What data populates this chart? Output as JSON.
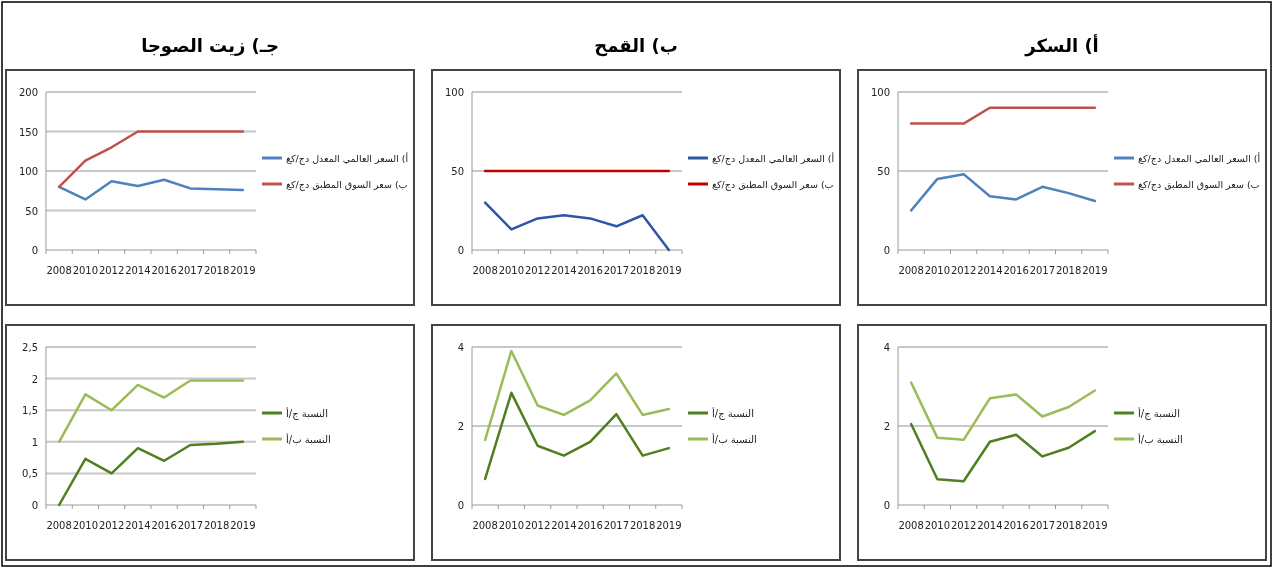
{
  "chart_data": [
    {
      "type": "line",
      "title": "أ)   السكر",
      "categories": [
        "2008",
        "2010",
        "2012",
        "2014",
        "2016",
        "2017",
        "2018",
        "2019"
      ],
      "ylim": [
        0,
        100
      ],
      "yticks": [
        0,
        50,
        100
      ],
      "grid": "y",
      "legend": "right",
      "series": [
        {
          "name": "أ) السعر العالمي المعدل دج/كغ",
          "color": "#4f81bd",
          "values": [
            25,
            45,
            48,
            34,
            32,
            40,
            36,
            31
          ]
        },
        {
          "name": "ب) سعر السوق المطبق دج/كغ",
          "color": "#c0504d",
          "values": [
            80,
            80,
            80,
            90,
            90,
            90,
            90,
            90
          ]
        }
      ]
    },
    {
      "type": "line",
      "title": "ب)  القمح",
      "categories": [
        "2008",
        "2010",
        "2012",
        "2014",
        "2016",
        "2017",
        "2018",
        "2019"
      ],
      "ylim": [
        0,
        100
      ],
      "yticks": [
        0,
        50,
        100
      ],
      "grid": "y",
      "legend": "right",
      "series": [
        {
          "name": "أ) السعر العالمي المعدل دج/كغ",
          "color": "#2e56a6",
          "values": [
            30,
            13,
            20,
            22,
            20,
            15,
            22,
            0
          ]
        },
        {
          "name": "ب) سعر السوق المطبق دج/كغ",
          "color": "#c00000",
          "values": [
            50,
            50,
            50,
            50,
            50,
            50,
            50,
            50
          ]
        }
      ]
    },
    {
      "type": "line",
      "title": "جـ) زيت الصوجا",
      "categories": [
        "2008",
        "2010",
        "2012",
        "2014",
        "2016",
        "2017",
        "2018",
        "2019"
      ],
      "ylim": [
        0,
        200
      ],
      "yticks": [
        0,
        50,
        100,
        150,
        200
      ],
      "grid": "y",
      "legend": "right",
      "series": [
        {
          "name": "أ) السعر العالمي المعدل دج/كغ",
          "color": "#4f81bd",
          "values": [
            80,
            64,
            87,
            81,
            89,
            78,
            77,
            76
          ]
        },
        {
          "name": "ب) سعر السوق المطبق دج/كغ",
          "color": "#c0504d",
          "values": [
            80,
            113,
            130,
            150,
            150,
            150,
            150,
            150
          ]
        }
      ]
    },
    {
      "type": "line",
      "categories": [
        "2008",
        "2010",
        "2012",
        "2014",
        "2016",
        "2017",
        "2018",
        "2019"
      ],
      "ylim": [
        0,
        4
      ],
      "yticks": [
        0,
        2,
        4
      ],
      "grid": "y",
      "legend": "right",
      "series": [
        {
          "name": "النسبة ج/أ",
          "color": "#4f7f1f",
          "values": [
            2.05,
            0.65,
            0.6,
            1.6,
            1.78,
            1.23,
            1.45,
            1.87
          ]
        },
        {
          "name": "النسبة ب/أ",
          "color": "#9bbb59",
          "values": [
            3.1,
            1.7,
            1.65,
            2.7,
            2.8,
            2.24,
            2.48,
            2.9
          ]
        }
      ]
    },
    {
      "type": "line",
      "categories": [
        "2008",
        "2010",
        "2012",
        "2014",
        "2016",
        "2017",
        "2018",
        "2019"
      ],
      "ylim": [
        0,
        4
      ],
      "yticks": [
        0,
        2,
        4
      ],
      "grid": "y",
      "legend": "right",
      "series": [
        {
          "name": "النسبة ج/أ",
          "color": "#4f7f1f",
          "values": [
            0.66,
            2.84,
            1.5,
            1.25,
            1.6,
            2.3,
            1.25,
            1.44
          ]
        },
        {
          "name": "النسبة ب/أ",
          "color": "#9bbb59",
          "values": [
            1.65,
            3.9,
            2.52,
            2.28,
            2.65,
            3.33,
            2.28,
            2.43
          ]
        }
      ]
    },
    {
      "type": "line",
      "categories": [
        "2008",
        "2010",
        "2012",
        "2014",
        "2016",
        "2017",
        "2018",
        "2019"
      ],
      "ylim": [
        0,
        2.5
      ],
      "yticks": [
        0,
        {
          "value": 0.5,
          "label": "0,5"
        },
        1,
        {
          "value": 1.5,
          "label": "1,5"
        },
        2,
        {
          "value": 2.5,
          "label": "2,5"
        }
      ],
      "grid": "y",
      "legend": "right",
      "series": [
        {
          "name": "النسبة ج/أ",
          "color": "#4f7f1f",
          "values": [
            0,
            0.73,
            0.5,
            0.9,
            0.7,
            0.95,
            0.97,
            1.0
          ]
        },
        {
          "name": "النسبة ب/أ",
          "color": "#9bbb59",
          "values": [
            1.0,
            1.75,
            1.5,
            1.9,
            1.7,
            1.97,
            1.97,
            1.97
          ]
        }
      ]
    }
  ]
}
